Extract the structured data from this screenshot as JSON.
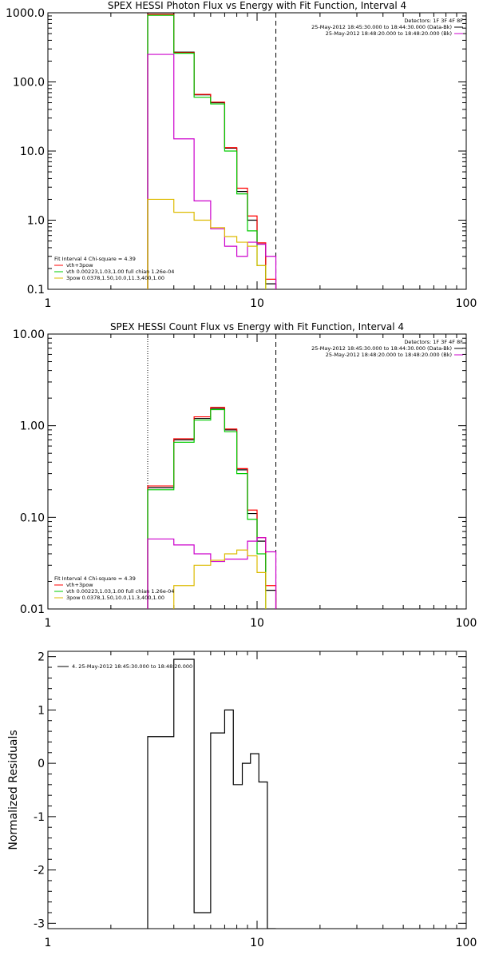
{
  "chart_data": [
    {
      "type": "line",
      "step": true,
      "title": "SPEX HESSI Photon Flux vs Energy with Fit Function, Interval 4",
      "xlabel": "",
      "ylabel": "",
      "xscale": "log",
      "yscale": "log",
      "xlim": [
        1,
        100
      ],
      "ylim": [
        0.1,
        1000
      ],
      "x_ticks": [
        "1",
        "10",
        "100"
      ],
      "y_ticks": [
        "0.1",
        "1.0",
        "10.0",
        "100.0",
        "1000.0"
      ],
      "vlines": [
        {
          "x": 3.0,
          "style": "dotted"
        },
        {
          "x": 12.3,
          "style": "dashed"
        }
      ],
      "bin_edges": [
        3.0,
        4.0,
        5.0,
        6.0,
        7.0,
        8.0,
        9.0,
        10.0,
        11.0,
        12.3
      ],
      "series": [
        {
          "color": "#000000",
          "values": [
            1000,
            270,
            65,
            50,
            11,
            2.6,
            1.0,
            0.45,
            0.12
          ]
        },
        {
          "color": "#ff0000",
          "values": [
            950,
            265,
            66,
            51,
            11.2,
            2.9,
            1.15,
            0.47,
            0.14
          ]
        },
        {
          "color": "#00cc00",
          "values": [
            920,
            260,
            60,
            48,
            10.0,
            2.4,
            0.7,
            0.22,
            0.08
          ]
        },
        {
          "color": "#cc00cc",
          "values": [
            250,
            15,
            1.9,
            0.75,
            0.42,
            0.3,
            0.48,
            0.45,
            0.3
          ]
        },
        {
          "color": "#ddbb00",
          "values": [
            2.0,
            1.3,
            1.0,
            0.78,
            0.58,
            0.48,
            0.42,
            0.22,
            0.09
          ]
        }
      ],
      "legend_right": {
        "placement": "top-right",
        "title": "Detectors: 1F 3F 4F 8F",
        "entries": [
          {
            "text": "25-May-2012 18:45:30.000 to 18:44:30.000 (Data-Bk)",
            "color": "#000000"
          },
          {
            "text": "25-May-2012 18:48:20.000 to 18:48:20.000 (Bk)",
            "color": "#cc00cc"
          }
        ]
      },
      "legend_left": {
        "placement": "bottom-left",
        "title": "Fit Interval  4    Chi-square = 4.39",
        "entries": [
          {
            "text": "vth+3pow",
            "color": "#ff0000"
          },
          {
            "text": "vth 0.00223,1.03,1.00   full chian 1.26e-04",
            "color": "#00cc00"
          },
          {
            "text": "3pow 0.0378,1.50,10.0,11.3,400,1.00",
            "color": "#ddbb00"
          }
        ]
      }
    },
    {
      "type": "line",
      "step": true,
      "title": "SPEX HESSI Count Flux vs Energy with Fit Function, Interval 4",
      "xlabel": "",
      "ylabel": "",
      "xscale": "log",
      "yscale": "log",
      "xlim": [
        1,
        100
      ],
      "ylim": [
        0.01,
        10
      ],
      "x_ticks": [
        "1",
        "10",
        "100"
      ],
      "y_ticks": [
        "0.01",
        "0.10",
        "1.00",
        "10.00"
      ],
      "vlines": [
        {
          "x": 3.0,
          "style": "dotted"
        },
        {
          "x": 12.3,
          "style": "dashed"
        }
      ],
      "bin_edges": [
        3.0,
        4.0,
        5.0,
        6.0,
        7.0,
        8.0,
        9.0,
        10.0,
        11.0,
        12.3
      ],
      "series": [
        {
          "color": "#000000",
          "values": [
            0.21,
            0.7,
            1.2,
            1.55,
            0.9,
            0.33,
            0.11,
            0.055,
            0.016
          ]
        },
        {
          "color": "#ff0000",
          "values": [
            0.22,
            0.72,
            1.25,
            1.58,
            0.92,
            0.34,
            0.12,
            0.06,
            0.018
          ]
        },
        {
          "color": "#00cc00",
          "values": [
            0.2,
            0.66,
            1.15,
            1.5,
            0.86,
            0.3,
            0.095,
            0.04,
            0.008
          ]
        },
        {
          "color": "#cc00cc",
          "values": [
            0.058,
            0.05,
            0.04,
            0.033,
            0.035,
            0.035,
            0.055,
            0.06,
            0.042
          ]
        },
        {
          "color": "#ddbb00",
          "values": [
            0.006,
            0.018,
            0.03,
            0.034,
            0.04,
            0.044,
            0.038,
            0.025,
            0.009
          ]
        }
      ],
      "legend_right": {
        "placement": "top-right",
        "title": "Detectors: 1F 3F 4F 8F",
        "entries": [
          {
            "text": "25-May-2012 18:45:30.000 to 18:44:30.000 (Data-Bk)",
            "color": "#000000"
          },
          {
            "text": "25-May-2012 18:48:20.000 to 18:48:20.000 (Bk)",
            "color": "#cc00cc"
          }
        ]
      },
      "legend_left": {
        "placement": "bottom-left",
        "title": "Fit Interval  4    Chi-square = 4.39",
        "entries": [
          {
            "text": "vth+3pow",
            "color": "#ff0000"
          },
          {
            "text": "vth 0.00223,1.03,1.00   full chian 1.26e-04",
            "color": "#00cc00"
          },
          {
            "text": "3pow 0.0378,1.50,10.0,11.3,400,1.00",
            "color": "#ddbb00"
          }
        ]
      }
    },
    {
      "type": "line",
      "step": true,
      "title": "",
      "xlabel": "",
      "ylabel": "Normalized Residuals",
      "xscale": "linear-log",
      "yscale": "linear",
      "xlim": [
        1,
        100
      ],
      "ylim": [
        -3.1,
        2.1
      ],
      "x_ticks": [
        "1",
        "10",
        "100"
      ],
      "y_ticks": [
        "-3",
        "-2",
        "-1",
        "0",
        "1",
        "2"
      ],
      "bin_edges": [
        3.0,
        4.0,
        5.0,
        6.0,
        7.0,
        7.7,
        8.5,
        9.3,
        10.2,
        11.2,
        12.3
      ],
      "series": [
        {
          "color": "#000000",
          "values": [
            0.5,
            1.95,
            -2.8,
            0.57,
            1.0,
            -0.4,
            0.0,
            0.18,
            -0.35,
            -3.1
          ]
        }
      ],
      "legend_left": {
        "placement": "top-left",
        "entries": [
          {
            "text": "4. 25-May-2012 18:45:30.000 to 18:48:20.000",
            "color": "#000000"
          }
        ]
      }
    }
  ]
}
